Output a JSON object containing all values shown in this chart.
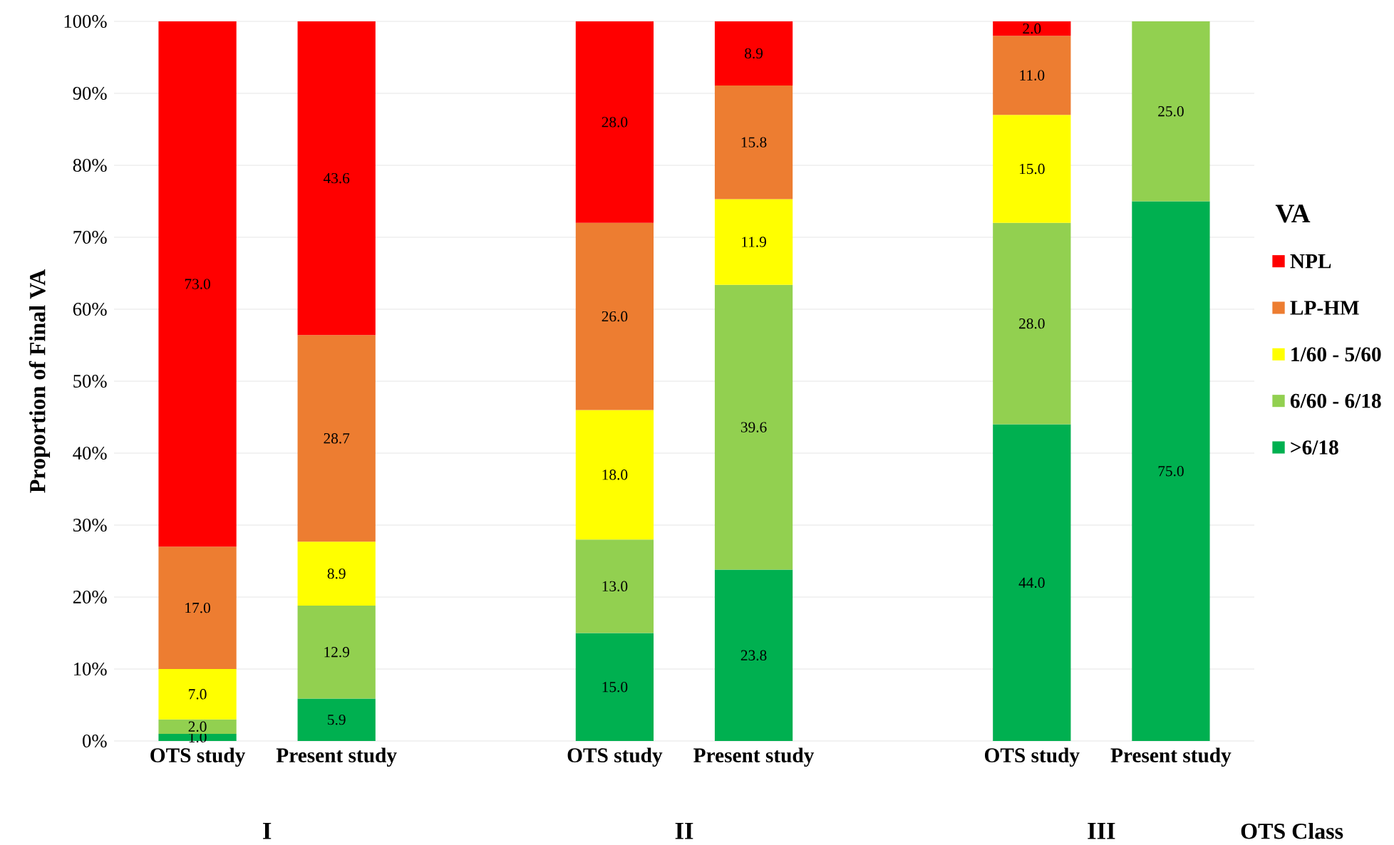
{
  "chart_data": {
    "type": "bar",
    "stacked": true,
    "ylabel": "Proportion of Final VA",
    "xlabel": "OTS Class",
    "legend_title": "VA",
    "legend": "right",
    "grid": "y",
    "categories": [
      "OTS study",
      "Present study",
      null,
      "OTS study",
      "Present study",
      null,
      "OTS study",
      "Present study"
    ],
    "annotations": [
      "I",
      "II",
      "III"
    ],
    "ylim": [
      0,
      100
    ],
    "yticks": [
      {
        "value": 0,
        "label": "0%"
      },
      {
        "value": 10,
        "label": "10%"
      },
      {
        "value": 20,
        "label": "20%"
      },
      {
        "value": 30,
        "label": "30%"
      },
      {
        "value": 40,
        "label": "40%"
      },
      {
        "value": 50,
        "label": "50%"
      },
      {
        "value": 60,
        "label": "60%"
      },
      {
        "value": 70,
        "label": "70%"
      },
      {
        "value": 80,
        "label": "80%"
      },
      {
        "value": 90,
        "label": "90%"
      },
      {
        "value": 100,
        "label": "100%"
      }
    ],
    "series": [
      {
        "name": ">6/18",
        "color": "#00b050",
        "values": [
          1.0,
          5.9,
          null,
          15.0,
          23.8,
          null,
          44.0,
          75.0
        ],
        "value_labels": [
          "1.0",
          "5.9",
          null,
          "15.0",
          "23.8",
          null,
          "44.0",
          "75.0"
        ]
      },
      {
        "name": "6/60 - 6/18",
        "color": "#92d050",
        "values": [
          2.0,
          12.9,
          null,
          13.0,
          39.6,
          null,
          28.0,
          25.0
        ],
        "value_labels": [
          "2.0",
          "12.9",
          null,
          "13.0",
          "39.6",
          null,
          "28.0",
          "25.0"
        ]
      },
      {
        "name": "1/60 - 5/60",
        "color": "#ffff00",
        "values": [
          7.0,
          8.9,
          null,
          18.0,
          11.9,
          null,
          15.0,
          null
        ],
        "value_labels": [
          "7.0",
          "8.9",
          null,
          "18.0",
          "11.9",
          null,
          "15.0",
          null
        ]
      },
      {
        "name": "LP-HM",
        "color": "#ed7d31",
        "values": [
          17.0,
          28.7,
          null,
          26.0,
          15.8,
          null,
          11.0,
          null
        ],
        "value_labels": [
          "17.0",
          "28.7",
          null,
          "26.0",
          "15.8",
          null,
          "11.0",
          null
        ]
      },
      {
        "name": "NPL",
        "color": "#ff0000",
        "values": [
          73.0,
          43.6,
          null,
          28.0,
          8.9,
          null,
          2.0,
          null
        ],
        "value_labels": [
          "73.0",
          "43.6",
          null,
          "28.0",
          "8.9",
          null,
          "2.0",
          null
        ]
      }
    ]
  }
}
